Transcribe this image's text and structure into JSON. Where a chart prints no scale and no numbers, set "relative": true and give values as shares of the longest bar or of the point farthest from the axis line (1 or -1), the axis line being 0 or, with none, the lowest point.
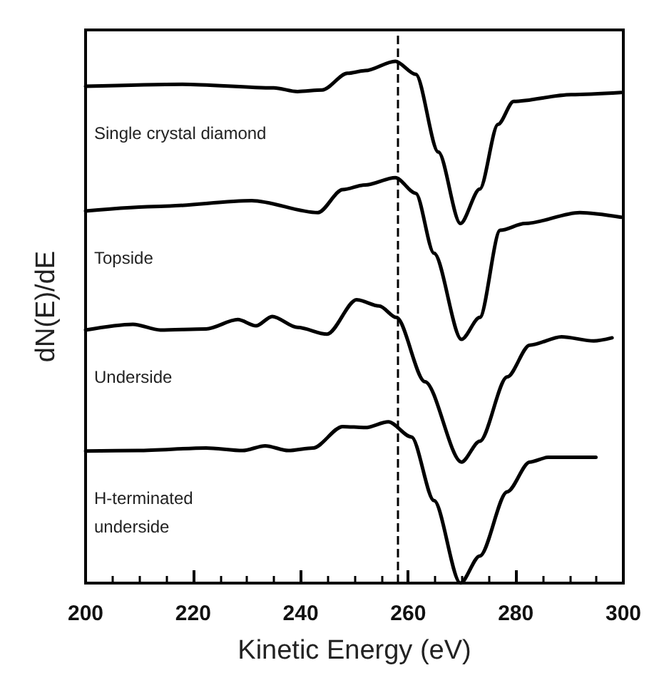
{
  "chart_data": {
    "type": "line",
    "relative": true,
    "xlabel": "Kinetic Energy (eV)",
    "ylabel": "dN(E)/dE",
    "xlim": [
      200,
      300
    ],
    "xticks": [
      200,
      220,
      240,
      260,
      280,
      300
    ],
    "grid": false,
    "marker": "none",
    "line_style": "solid",
    "ref_lines": [
      {
        "axis": "x",
        "value": 258,
        "line_style": "dashed",
        "color": "#000000"
      }
    ],
    "series": [
      {
        "name": "Single crystal diamond",
        "color": "#000000",
        "x": [
          200,
          218,
          235,
          239.4,
          244,
          248.7,
          252,
          257.6,
          261.4,
          265.6,
          269.7,
          273.3,
          276.7,
          279.6,
          290.3,
          299.6
        ],
        "values": [
          0.952,
          0.956,
          0.949,
          0.942,
          0.945,
          0.977,
          0.982,
          1.0,
          0.975,
          0.826,
          0.689,
          0.755,
          0.879,
          0.923,
          0.936,
          0.94
        ]
      },
      {
        "name": "Topside",
        "color": "#000000",
        "x": [
          200,
          213.9,
          230.9,
          243.2,
          247.8,
          252,
          257.6,
          261.4,
          264.8,
          269.9,
          273.3,
          277.1,
          281.7,
          291.9,
          299.6
        ],
        "values": [
          0.713,
          0.722,
          0.733,
          0.71,
          0.754,
          0.763,
          0.777,
          0.747,
          0.632,
          0.467,
          0.509,
          0.676,
          0.689,
          0.71,
          0.701
        ]
      },
      {
        "name": "Underside",
        "color": "#000000",
        "x": [
          200,
          208.8,
          213.9,
          222.4,
          228.3,
          231.7,
          234.7,
          239.4,
          244.9,
          250.4,
          254.6,
          257.8,
          263.1,
          269.9,
          273.3,
          278.4,
          282.6,
          288.5,
          294.5,
          297.9
        ],
        "values": [
          0.485,
          0.496,
          0.485,
          0.487,
          0.505,
          0.493,
          0.511,
          0.49,
          0.477,
          0.543,
          0.531,
          0.509,
          0.386,
          0.232,
          0.272,
          0.395,
          0.456,
          0.472,
          0.464,
          0.47
        ]
      },
      {
        "name": "H-terminated\nunderside",
        "color": "#000000",
        "x": [
          200,
          209.7,
          222.4,
          229.2,
          233.4,
          237.7,
          242.3,
          247.8,
          252,
          256.3,
          260.6,
          264.8,
          269.7,
          273.3,
          278.4,
          282.6,
          286,
          294.9
        ],
        "values": [
          0.253,
          0.254,
          0.259,
          0.254,
          0.263,
          0.254,
          0.259,
          0.3,
          0.298,
          0.309,
          0.28,
          0.158,
          0.0,
          0.052,
          0.175,
          0.232,
          0.241,
          0.241
        ]
      }
    ]
  }
}
